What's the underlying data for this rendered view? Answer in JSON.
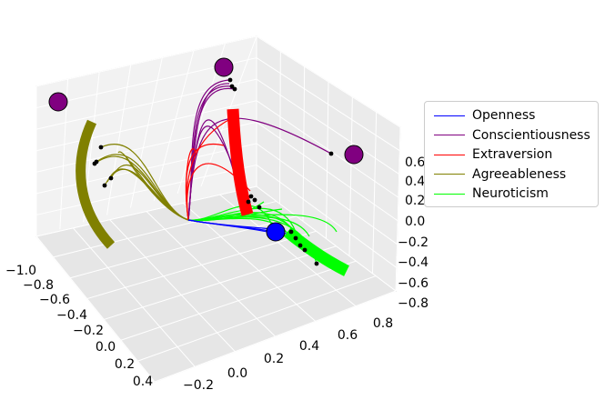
{
  "chart_data": {
    "type": "3d-line",
    "title": "",
    "xlabel": "",
    "ylabel": "",
    "zlabel": "",
    "axes": {
      "x": {
        "ticks": [
          "−1.0",
          "−0.8",
          "−0.6",
          "−0.4",
          "−0.2",
          "0.0",
          "0.2",
          "0.4"
        ],
        "range": [
          -1.0,
          0.4
        ]
      },
      "y": {
        "ticks": [
          "−0.2",
          "0.0",
          "0.2",
          "0.4",
          "0.6",
          "0.8"
        ],
        "range": [
          -0.3,
          0.9
        ]
      },
      "z": {
        "ticks": [
          "0.6",
          "0.4",
          "0.2",
          "0.0",
          "−0.2",
          "−0.4",
          "−0.6",
          "−0.8"
        ],
        "range": [
          -0.85,
          0.75
        ]
      }
    },
    "grid": true,
    "legend_position": "right",
    "series": [
      {
        "name": "Openness",
        "color": "#0000ff"
      },
      {
        "name": "Conscientiousness",
        "color": "#800080"
      },
      {
        "name": "Extraversion",
        "color": "#ff0000"
      },
      {
        "name": "Agreeableness",
        "color": "#808000"
      },
      {
        "name": "Neuroticism",
        "color": "#00ff00"
      }
    ],
    "markers": [
      {
        "series": "Openness",
        "kind": "large-circle",
        "color": "#0000ff"
      },
      {
        "series": "Conscientiousness",
        "kind": "large-circle",
        "color": "#800080"
      },
      {
        "series": "Conscientiousness",
        "kind": "large-circle",
        "color": "#800080"
      },
      {
        "series": "Conscientiousness",
        "kind": "large-circle",
        "color": "#800080"
      }
    ]
  }
}
